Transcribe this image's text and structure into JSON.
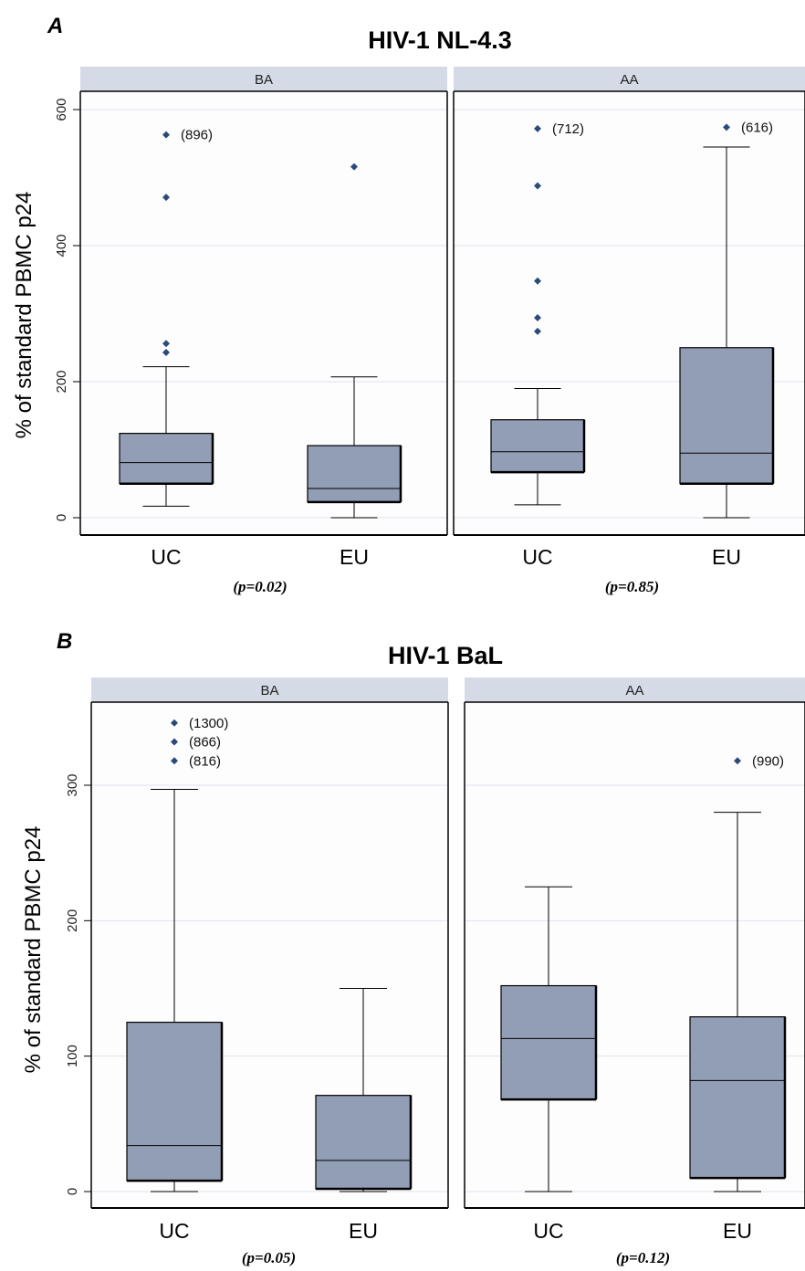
{
  "colors": {
    "box_fill": "#929eb5",
    "strip_fill": "#d4dae6",
    "outlier": "#2b4a7a",
    "gridline": "#dde3ee",
    "plot_bg": "#fdfdfd"
  },
  "chart_data": [
    {
      "type": "box",
      "panel_letter": "A",
      "title": "HIV-1 NL-4.3",
      "ylabel": "% of standard PBMC p24",
      "yticks": [
        0,
        200,
        400,
        600
      ],
      "ylim": [
        0,
        600
      ],
      "grid": true,
      "facets": [
        {
          "label": "BA",
          "pvalue": "(p=0.02)",
          "categories": [
            {
              "name": "UC",
              "whisker_low": 17,
              "q1": 50,
              "median": 81,
              "q3": 124,
              "whisker_high": 222,
              "outliers": [
                {
                  "value": 563,
                  "label": "(896)"
                },
                {
                  "value": 471,
                  "label": ""
                },
                {
                  "value": 256,
                  "label": ""
                },
                {
                  "value": 243,
                  "label": ""
                }
              ]
            },
            {
              "name": "EU",
              "whisker_low": 0,
              "q1": 23,
              "median": 43,
              "q3": 106,
              "whisker_high": 207,
              "outliers": [
                {
                  "value": 516,
                  "label": ""
                }
              ]
            }
          ]
        },
        {
          "label": "AA",
          "pvalue": "(p=0.85)",
          "categories": [
            {
              "name": "UC",
              "whisker_low": 19,
              "q1": 67,
              "median": 97,
              "q3": 144,
              "whisker_high": 190,
              "outliers": [
                {
                  "value": 572,
                  "label": "(712)"
                },
                {
                  "value": 488,
                  "label": ""
                },
                {
                  "value": 348,
                  "label": ""
                },
                {
                  "value": 294,
                  "label": ""
                },
                {
                  "value": 274,
                  "label": ""
                }
              ]
            },
            {
              "name": "EU",
              "whisker_low": 0,
              "q1": 50,
              "median": 95,
              "q3": 250,
              "whisker_high": 545,
              "outliers": [
                {
                  "value": 574,
                  "label": "(616)"
                }
              ]
            }
          ]
        }
      ]
    },
    {
      "type": "box",
      "panel_letter": "B",
      "title": "HIV-1 BaL",
      "ylabel": "% of standard PBMC p24",
      "yticks": [
        0,
        100,
        200,
        300
      ],
      "ylim": [
        0,
        300
      ],
      "grid": true,
      "facets": [
        {
          "label": "BA",
          "pvalue": "(p=0.05)",
          "categories": [
            {
              "name": "UC",
              "whisker_low": 0,
              "q1": 8,
              "median": 34,
              "q3": 125,
              "whisker_high": 297,
              "outliers": [
                {
                  "value": 346,
                  "label": "(1300)"
                },
                {
                  "value": 332,
                  "label": "(866)"
                },
                {
                  "value": 318,
                  "label": "(816)"
                }
              ]
            },
            {
              "name": "EU",
              "whisker_low": 0,
              "q1": 2,
              "median": 23,
              "q3": 71,
              "whisker_high": 150,
              "outliers": []
            }
          ]
        },
        {
          "label": "AA",
          "pvalue": "(p=0.12)",
          "categories": [
            {
              "name": "UC",
              "whisker_low": 0,
              "q1": 68,
              "median": 113,
              "q3": 152,
              "whisker_high": 225,
              "outliers": []
            },
            {
              "name": "EU",
              "whisker_low": 0,
              "q1": 10,
              "median": 82,
              "q3": 129,
              "whisker_high": 280,
              "outliers": [
                {
                  "value": 318,
                  "label": "(990)"
                }
              ]
            }
          ]
        }
      ]
    }
  ]
}
